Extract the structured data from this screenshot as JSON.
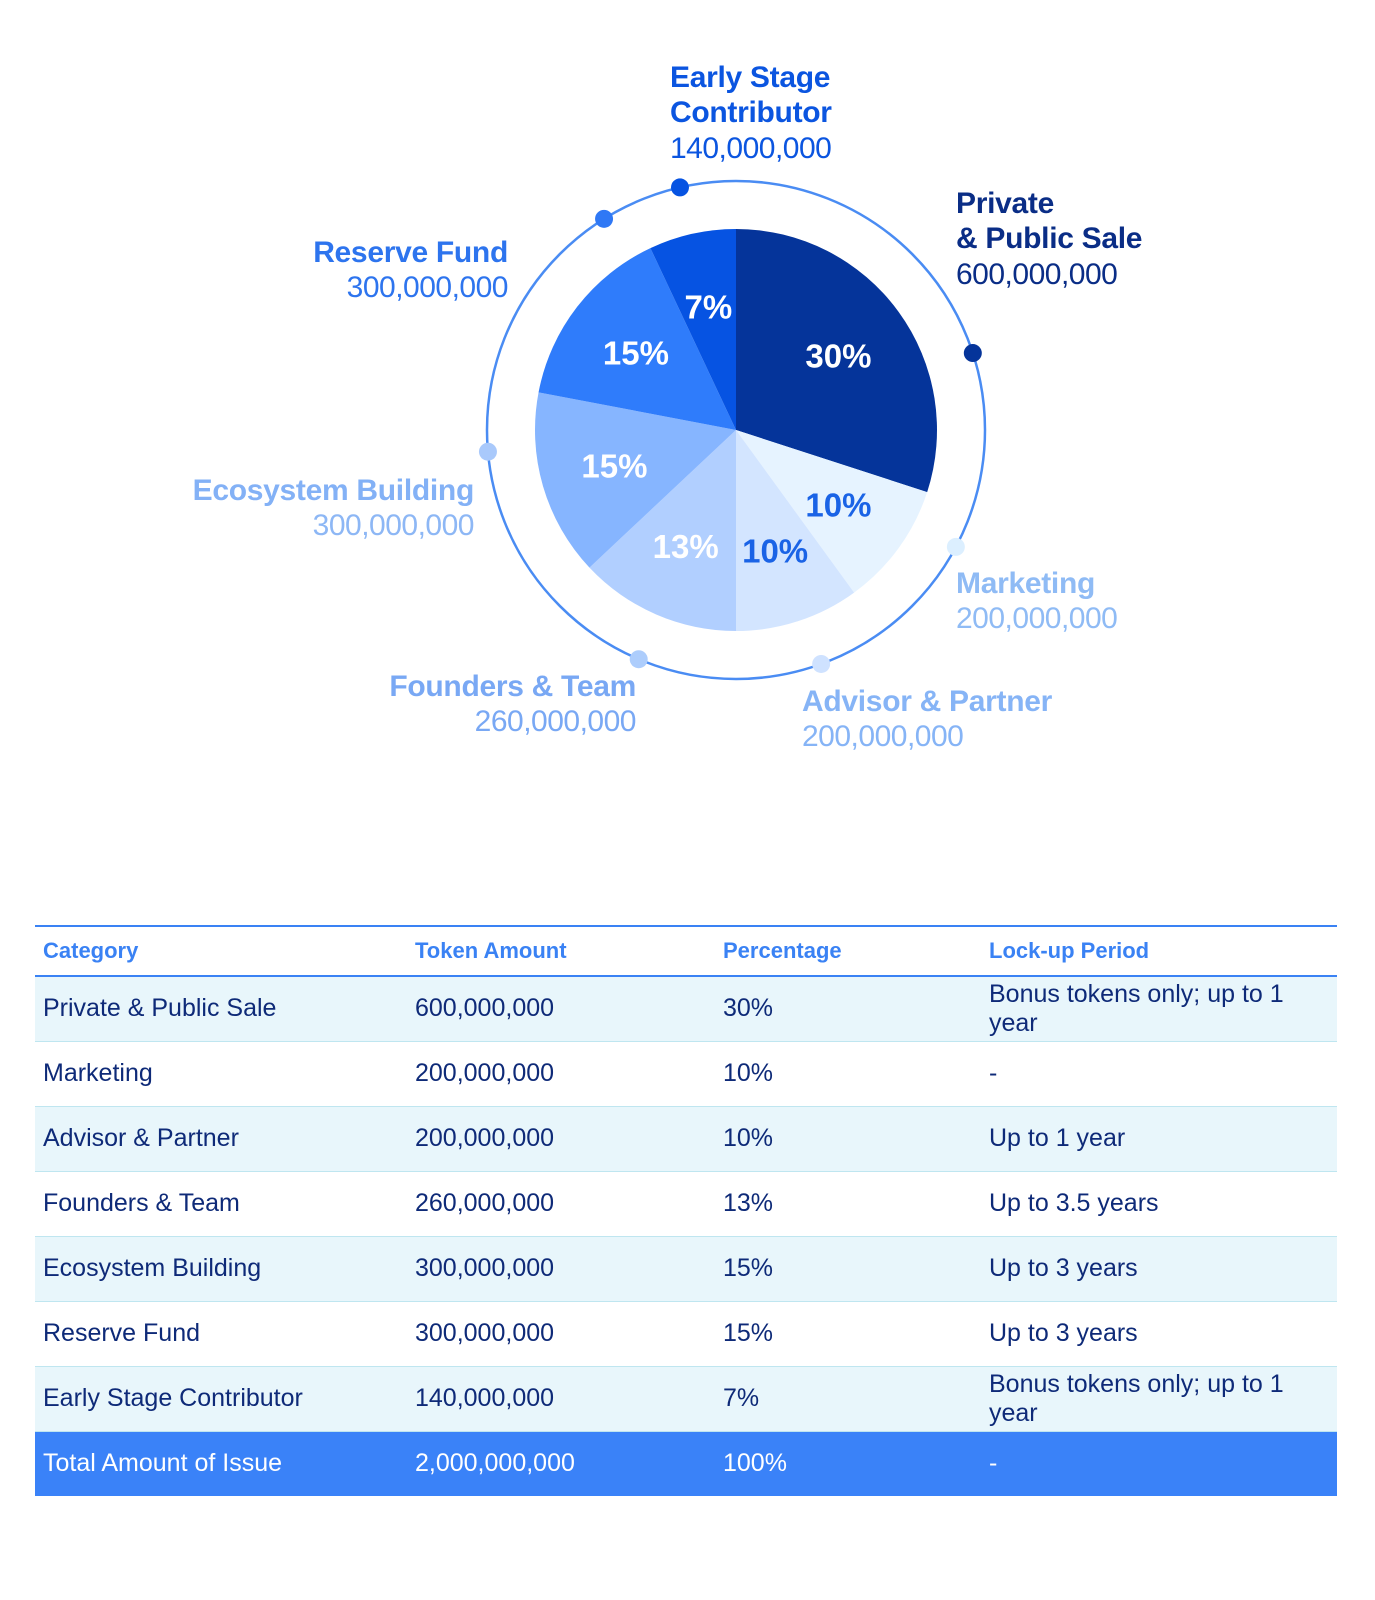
{
  "chart_data": {
    "type": "pie",
    "slices": [
      {
        "label": "Private\n& Public Sale",
        "value": 600000000,
        "value_label": "600,000,000",
        "pct_label": "30%",
        "color": "#05349a",
        "pct_color": "#ffffff",
        "name_color": "#0a2d86",
        "num_color": "#0a2d86",
        "dot_color": "#05349a"
      },
      {
        "label": "Marketing",
        "value": 200000000,
        "value_label": "200,000,000",
        "pct_label": "10%",
        "color": "#e6f3ff",
        "pct_color": "#1a63e6",
        "name_color": "#8fbbf5",
        "num_color": "#8fbbf5",
        "dot_color": "#dcefff"
      },
      {
        "label": "Advisor & Partner",
        "value": 200000000,
        "value_label": "200,000,000",
        "pct_label": "10%",
        "color": "#d3e5ff",
        "pct_color": "#1a63e6",
        "name_color": "#86b4f6",
        "num_color": "#86b4f6",
        "dot_color": "#cfe2ff"
      },
      {
        "label": "Founders & Team",
        "value": 260000000,
        "value_label": "260,000,000",
        "pct_label": "13%",
        "color": "#b1cfff",
        "pct_color": "#ffffff",
        "name_color": "#79a8f4",
        "num_color": "#79a8f4",
        "dot_color": "#adcdfc"
      },
      {
        "label": "Ecosystem Building",
        "value": 300000000,
        "value_label": "300,000,000",
        "pct_label": "15%",
        "color": "#86b5ff",
        "pct_color": "#ffffff",
        "name_color": "#83b1f6",
        "num_color": "#8db7f5",
        "dot_color": "#a9c9fb"
      },
      {
        "label": "Reserve Fund",
        "value": 300000000,
        "value_label": "300,000,000",
        "pct_label": "15%",
        "color": "#2f7cfb",
        "pct_color": "#ffffff",
        "name_color": "#2d74ee",
        "num_color": "#2d74ee",
        "dot_color": "#2f78f5"
      },
      {
        "label": "Early Stage\nContributor",
        "value": 140000000,
        "value_label": "140,000,000",
        "pct_label": "7%",
        "color": "#0653e2",
        "pct_color": "#ffffff",
        "name_color": "#0b55e0",
        "num_color": "#0b55e0",
        "dot_color": "#0653e2"
      }
    ]
  },
  "table": {
    "headers": [
      "Category",
      "Token Amount",
      "Percentage",
      "Lock-up Period"
    ],
    "rows": [
      [
        "Private & Public Sale",
        "600,000,000",
        "30%",
        "Bonus tokens only; up to 1 year"
      ],
      [
        "Marketing",
        "200,000,000",
        "10%",
        "-"
      ],
      [
        "Advisor & Partner",
        "200,000,000",
        "10%",
        "Up to 1 year"
      ],
      [
        "Founders & Team",
        "260,000,000",
        "13%",
        "Up to 3.5 years"
      ],
      [
        "Ecosystem Building",
        "300,000,000",
        "15%",
        "Up to 3 years"
      ],
      [
        "Reserve Fund",
        "300,000,000",
        "15%",
        "Up to 3 years"
      ],
      [
        "Early Stage Contributor",
        "140,000,000",
        "7%",
        "Bonus tokens only; up to 1 year"
      ]
    ],
    "total": [
      "Total Amount of Issue",
      "2,000,000,000",
      "100%",
      "-"
    ]
  }
}
